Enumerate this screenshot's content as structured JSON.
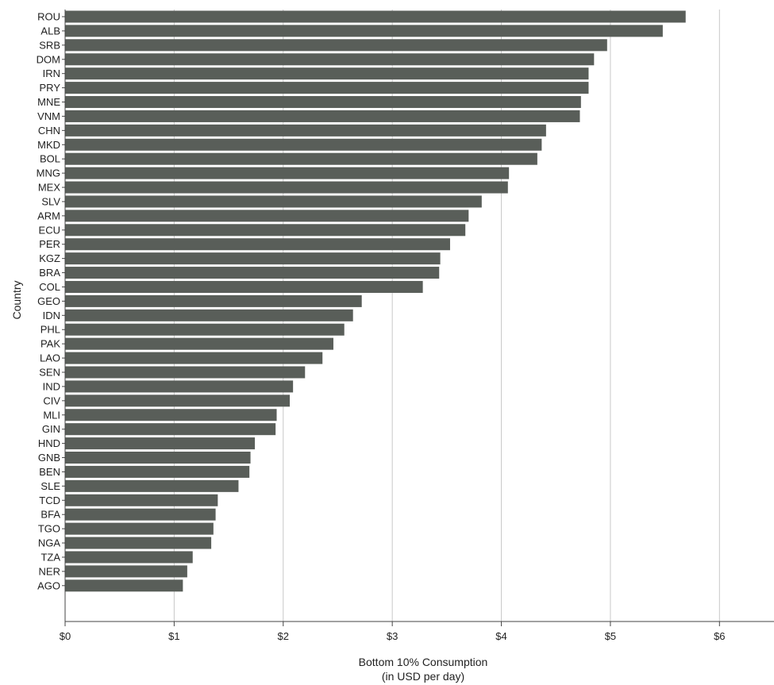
{
  "chart_data": {
    "type": "bar",
    "orientation": "horizontal",
    "xlabel_line1": "Bottom 10% Consumption",
    "xlabel_line2": "(in USD per day)",
    "ylabel": "Country",
    "xlim": [
      0,
      6.5
    ],
    "xticks": [
      {
        "value": 0,
        "label": "$0"
      },
      {
        "value": 1,
        "label": "$1"
      },
      {
        "value": 2,
        "label": "$2"
      },
      {
        "value": 3,
        "label": "$3"
      },
      {
        "value": 4,
        "label": "$4"
      },
      {
        "value": 5,
        "label": "$5"
      },
      {
        "value": 6,
        "label": "$6"
      }
    ],
    "grid": "vertical",
    "bar_color": "#595e59",
    "categories": [
      "ROU",
      "ALB",
      "SRB",
      "DOM",
      "IRN",
      "PRY",
      "MNE",
      "VNM",
      "CHN",
      "MKD",
      "BOL",
      "MNG",
      "MEX",
      "SLV",
      "ARM",
      "ECU",
      "PER",
      "KGZ",
      "BRA",
      "COL",
      "GEO",
      "IDN",
      "PHL",
      "PAK",
      "LAO",
      "SEN",
      "IND",
      "CIV",
      "MLI",
      "GIN",
      "HND",
      "GNB",
      "BEN",
      "SLE",
      "TCD",
      "BFA",
      "TGO",
      "NGA",
      "TZA",
      "NER",
      "AGO"
    ],
    "values": [
      5.69,
      5.48,
      4.97,
      4.85,
      4.8,
      4.8,
      4.73,
      4.72,
      4.41,
      4.37,
      4.33,
      4.07,
      4.06,
      3.82,
      3.7,
      3.67,
      3.53,
      3.44,
      3.43,
      3.28,
      2.72,
      2.64,
      2.56,
      2.46,
      2.36,
      2.2,
      2.09,
      2.06,
      1.94,
      1.93,
      1.74,
      1.7,
      1.69,
      1.59,
      1.4,
      1.38,
      1.36,
      1.34,
      1.17,
      1.12,
      1.08
    ]
  }
}
